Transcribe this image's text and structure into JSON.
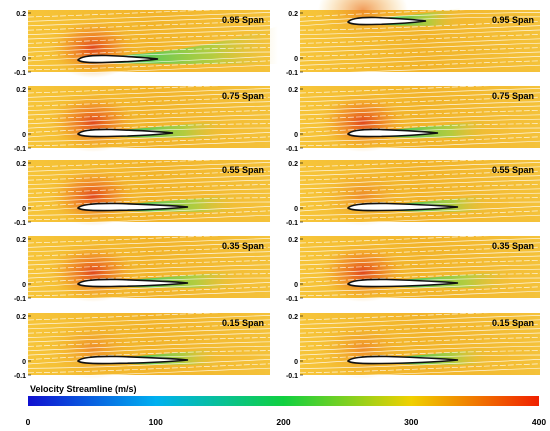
{
  "panels": {
    "left": [
      {
        "span_label": "0.95 Span",
        "y_ticks": [
          "0.2",
          "0",
          "-0.1"
        ],
        "wake": "high"
      },
      {
        "span_label": "0.75 Span",
        "y_ticks": [
          "0.2",
          "0",
          "-0.1"
        ],
        "wake": "mid"
      },
      {
        "span_label": "0.55 Span",
        "y_ticks": [
          "0.2",
          "0",
          "-0.1"
        ],
        "wake": "mid"
      },
      {
        "span_label": "0.35 Span",
        "y_ticks": [
          "0.2",
          "0",
          "-0.1"
        ],
        "wake": "mid"
      },
      {
        "span_label": "0.15 Span",
        "y_ticks": [
          "0.2",
          "0",
          "-0.1"
        ],
        "wake": "low"
      }
    ],
    "right": [
      {
        "span_label": "0.95 Span",
        "y_ticks": [
          "0.2",
          "0",
          "-0.1"
        ],
        "wake": "low"
      },
      {
        "span_label": "0.75 Span",
        "y_ticks": [
          "0.2",
          "0",
          "-0.1"
        ],
        "wake": "mid"
      },
      {
        "span_label": "0.55 Span",
        "y_ticks": [
          "0.2",
          "0",
          "-0.1"
        ],
        "wake": "low"
      },
      {
        "span_label": "0.35 Span",
        "y_ticks": [
          "0.2",
          "0",
          "-0.1"
        ],
        "wake": "mid"
      },
      {
        "span_label": "0.15 Span",
        "y_ticks": [
          "0.2",
          "0",
          "-0.1"
        ],
        "wake": "low"
      }
    ]
  },
  "colorbar": {
    "title": "Velocity Streamline (m/s)",
    "ticks": [
      "0",
      "100",
      "200",
      "300",
      "400"
    ],
    "colors": [
      "#1010d0",
      "#00b0f0",
      "#10d040",
      "#f0d000",
      "#f02000"
    ]
  },
  "colors": {
    "field_base": "#f2b72c",
    "field_high": "#e8561e",
    "wake_green": "#3cd25a",
    "streamline": "#ffffff",
    "airfoil": "#111111"
  }
}
